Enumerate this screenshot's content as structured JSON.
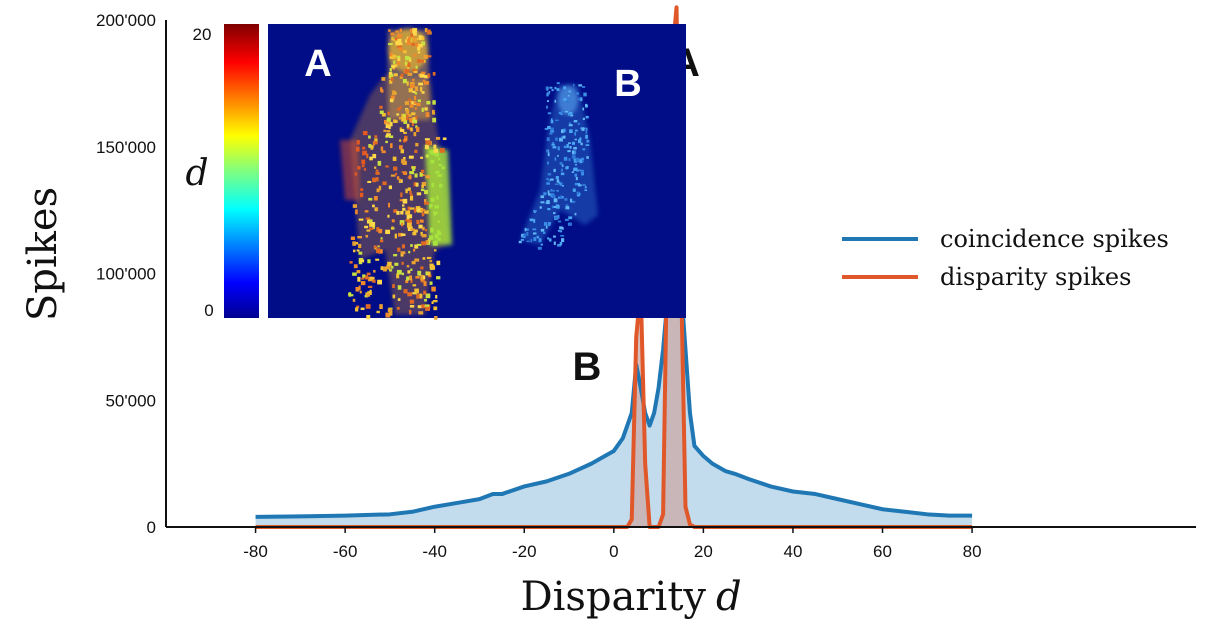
{
  "chart_data": {
    "type": "area",
    "xlabel": "Disparity",
    "xlabel_var": "d",
    "ylabel": "Spikes",
    "xlim": [
      -100,
      130
    ],
    "ylim": [
      0,
      200000
    ],
    "x_ticks": [
      -80,
      -60,
      -40,
      -20,
      0,
      20,
      40,
      60,
      80
    ],
    "y_ticks": [
      0,
      50000,
      100000,
      150000,
      200000
    ],
    "y_tick_labels": [
      "0",
      "50'000",
      "100'000",
      "150'000",
      "200'000"
    ],
    "grid": false,
    "legend_position": "right",
    "series": [
      {
        "name": "coincidence spikes",
        "color": "#1f77b4",
        "fill": "#b9d6ea",
        "x": [
          -80,
          -70,
          -60,
          -50,
          -45,
          -40,
          -35,
          -30,
          -27,
          -25,
          -20,
          -15,
          -10,
          -5,
          -2,
          0,
          2,
          4,
          5,
          6,
          7,
          8,
          9,
          10,
          11,
          12,
          13,
          14,
          15,
          16,
          17,
          18,
          20,
          22,
          25,
          27,
          30,
          35,
          40,
          45,
          50,
          55,
          60,
          65,
          70,
          75,
          80
        ],
        "y": [
          4000,
          4200,
          4500,
          5000,
          6000,
          8000,
          9500,
          11000,
          13000,
          13000,
          16000,
          18000,
          21000,
          25000,
          28000,
          30000,
          35000,
          45000,
          64000,
          55000,
          45000,
          40000,
          45000,
          55000,
          70000,
          90000,
          105000,
          114000,
          95000,
          70000,
          45000,
          32000,
          28000,
          25000,
          22000,
          21000,
          19000,
          16000,
          14000,
          13000,
          11000,
          9000,
          7000,
          6000,
          5000,
          4500,
          4500
        ]
      },
      {
        "name": "disparity spikes",
        "color": "#e0582a",
        "x": [
          -80,
          -30,
          0,
          3,
          4,
          5,
          6,
          7,
          8,
          9,
          10,
          11,
          12,
          13,
          14,
          15,
          16,
          17,
          18,
          20,
          40,
          80
        ],
        "y": [
          0,
          0,
          0,
          0,
          3000,
          75000,
          94000,
          25000,
          0,
          0,
          0,
          5000,
          120000,
          185000,
          205000,
          100000,
          8000,
          1000,
          0,
          0,
          0,
          0
        ]
      }
    ],
    "annotations": [
      {
        "text": "A",
        "x": 16,
        "y": 178000
      },
      {
        "text": "B",
        "x": -6,
        "y": 58000
      }
    ],
    "inset": {
      "colorbar_label": "d",
      "colorbar_range": [
        0,
        20
      ],
      "colorbar_tick_labels": [
        "20",
        "0"
      ],
      "labels": [
        "A",
        "B"
      ]
    }
  }
}
